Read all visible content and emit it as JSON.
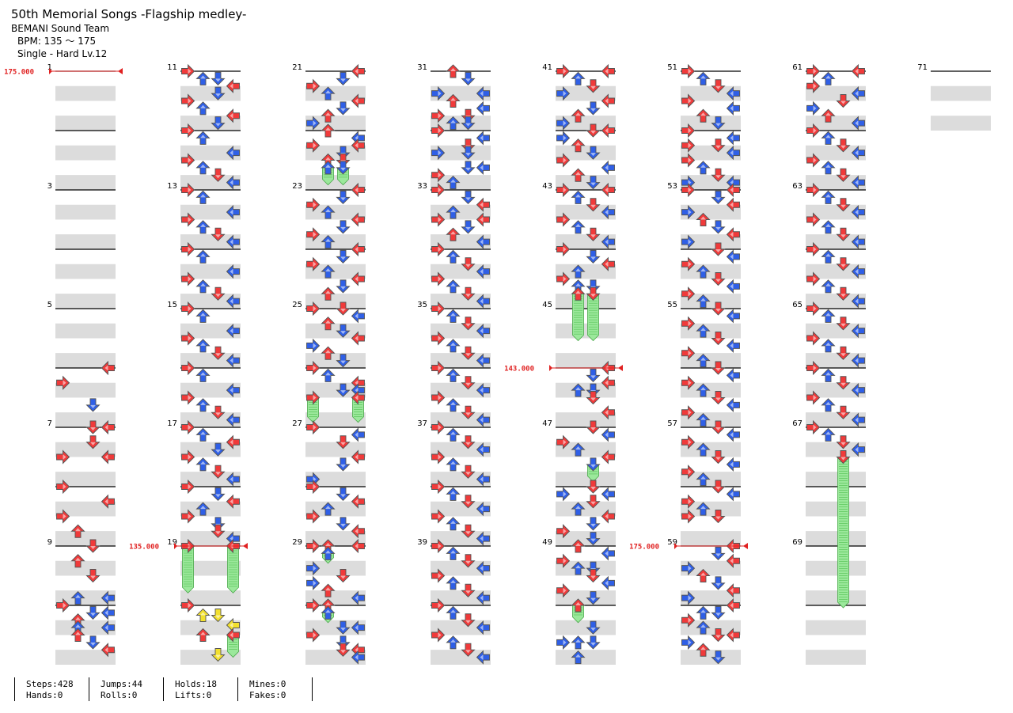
{
  "song": {
    "title": "50th Memorial Songs -Flagship medley-",
    "artist": "BEMANI Sound Team",
    "bpm": "BPM: 135 ～ 175",
    "chart": "Single - Hard  Lv.12"
  },
  "measures_total": 71,
  "bpm_changes": [
    {
      "measure": 1,
      "label": "175.000"
    },
    {
      "measure": 19,
      "label": "135.000"
    },
    {
      "measure": 46,
      "label": "143.000"
    },
    {
      "measure": 59,
      "label": "175.000"
    }
  ],
  "notes": {
    "6": "0001|0000|1000|0000|0000|0010|0000|0000",
    "7": "0011|0000|0010|0000|1001|0000|0000|0000",
    "8": "1000|0000|0001|0000|1000|0000|0100|0000",
    "9": "0010|0000|0100|0000|0020|0000|0003|0101",
    "10": "1000|0000|0011|0000|0100|0000|0101|0000|0100|0000|0010|0000|0001|0000|0000|0000",
    "11": "1000|0000|0110|0000|0001|0000|0010|0000|1000|0000|0100|0000|0001|0000|0010|0000",
    "12": "1000|0000|0100|0000|0000|0000|0001|0000|1000|0000|0100|0000|0010|0000|0001|0000",
    "13": "1000|0000|0100|0000|0000|0000|0001|0000|1000|0000|0100|0000|0010|0000|0001|0000",
    "14": "1000|0000|0100|0000|0000|0000|0001|0000|1000|0000|0100|0000|0010|0000|0001|0000",
    "15": "1000|0000|0100|0000|0000|0000|0001|0000|1000|0000|0100|0000|0010|0000|0001|0000",
    "16": "1000|0000|0100|0000|0000|0000|0001|0000|1000|0000|0100|0000|0010|0000|0001|0000",
    "17": "1000|0000|0100|0000|0001|0000|0010|0000|1000|0000|0100|0000|0010|0000|0001|0000",
    "18": "1000|0000|0010|0000|0001|0000|0100|0000|1000|0000|0010|0000|0010|0000|0001|0000",
    "19": "2002|0000|0000|0000|0000|0000|3003|0000",
    "20": "1000|0000|0110|0000|0001|0000|0102|0000|0000|0000|0013|0000",
    "21": "0001|0000|0010|0000|1000|0000|0100|0000|0001|0000|0010|0000|0100|0000|1000|0000",
    "22": "0100|0000|0001|0000|1001|0000|0010|0000|0110|0000|0220|0000|0000|0000|0330|0000",
    "23": "0001|0000|0010|0000|1000|0000|0100|0000|0001|0000|0010|0000|1000|0000|0100|0000",
    "24": "0001|0000|0010|0000|1000|0000|0100|0000|0001|0000|0010|0000|0100|0000|0000|0000",
    "25": "1010|0000|0001|0000|0100|0000|0010|0000|0001|0000|1000|0000|0100|0000|0010|0000",
    "26": "1000|0000|0100|0000|0001|0000|0011|0000|2002|0000|0000|0000|0000|0000|3003|0000",
    "27": "1000|0000|0001|0000|0010|0000|0000|0000|0001|0000|0010|0000|0000|0000|1000|0000",
    "28": "1000|0000|0010|0000|0001|0000|0100|0000|1000|0000|0010|0000|0001|0000|0000|0000",
    "29": "1101|0000|0200|0000|0300|0000|1000|0000|0010|0000|1000|0000|0100|0000|0001|0000",
    "30": "1100|0000|0200|0000|0300|0000|0011|0000|1000|0000|0010|0000|0011|0000|0001|0000",
    "31": "0100|0000|0010|0000|0000|0000|1001|0000|0100|0000|0001|0000|1010|0000|0110|0000",
    "32": "1000|0000|0001|0000|0010|0000|1020|0000|0300|0000|0011|0000|1000|0000|0100|0000",
    "33": "1000|0000|0010|0000|0001|0000|0100|0000|1001|0000|0010|0000|0100|0000|0001|0000",
    "34": "1000|0000|0100|0000|0010|0000|0001|0000|1000|0000|0100|0000|0010|0000|0001|0000",
    "35": "1000|0000|0100|0000|0010|0000|0001|0000|1000|0000|0100|0000|0010|0000|0001|0000",
    "36": "1000|0000|0100|0000|0010|0000|0001|0000|1000|0000|0100|0000|0010|0000|0001|0000",
    "37": "1000|0000|0100|0000|0010|0000|0001|0000|1000|0000|0100|0000|0010|0000|0001|0000",
    "38": "1000|0000|0100|0000|0010|0000|0001|0000|1000|0000|0100|0000|0010|0000|0001|0000",
    "39": "1000|0000|0100|0000|0010|0000|0001|0000|1000|0000|0100|0000|0010|0000|0001|0000",
    "40": "1000|0000|0100|0000|0010|0000|0001|0000|1000|0000|0100|0000|0010|0000|0001|0000",
    "41": "1001|0000|0100|0000|0010|0000|1000|0000|0001|0000|0010|0000|0100|0000|1000|0000",
    "42": "0011|0000|1000|0000|0100|0000|0010|0000|1000|0000|0001|0000|0100|0000|0010|0000",
    "43": "1001|0000|0100|0000|0010|0000|0001|0000|1000|0000|0100|0000|0010|0000|0001|0000",
    "44": "1000|0000|0010|0000|0001|0000|0100|0000|1000|0000|0110|0000|0220|0000|0000|0000",
    "45": "0000|0000|0000|0000|0330|0000|0000|0000",
    "46": "0001|0000|0010|0000|0001|0000|0110|0000|0010|0000|0000|0000|0001|0000|0000|0000",
    "47": "0010|0000|0001|0000|1000|0000|0100|0000|0001|0000|0020|0000|0000|0000|0030|0000",
    "48": "0010|0000|1001|0000|0010|0000|0100|0000|0001|0000|0010|0000|1000|0000|0010|0000",
    "49": "0100|0000|0001|0000|1000|0000|0110|0000|0010|0000|0001|0000|1000|0000|0010|0000",
    "50": "0200|0000|0000|0000|0300|0000|0010|0000|0000|0000|1110|0000|0000|0000|0100|0000",
    "51": "1000|0000|0100|0000|0010|0000|0001|0000|1000|0000|0001|0000|0100|0000|0010|0000",
    "52": "1000|0000|0001|0000|1010|0000|0001|0000|1000|0000|0100|0000|0010|0000|1001|0000",
    "53": "1001|0000|0010|0000|0001|0000|1000|0000|0100|0000|0010|0000|0001|0000|1000|0000",
    "54": "0010|0000|0001|0000|1000|0000|0100|0000|0010|0000|0001|0000|1000|0000|0100|0000",
    "55": "0010|0000|0001|0000|1000|0000|0100|0000|0010|0000|0001|0000|1000|0000|0100|0000",
    "56": "0010|0000|0001|0000|1000|0000|0100|0000|0010|0000|0001|0000|1000|0000|0100|0000",
    "57": "0010|0000|0001|0000|1000|0000|0100|0000|0010|0000|0001|0000|1000|0000|0100|0000",
    "58": "0010|0000|0001|0000|1000|0000|0100|0000|1020|0000|0000|0000|0000|0000|3003|0000",
    "59": "0001|0000|0010|0000|0001|0000|1000|0000|0100|0000|0010|0000|0001|0000|1000|0000",
    "60": "0001|0000|0110|0000|1000|0000|0100|0000|0011|0000|1000|0000|0100|0000|0010|0000",
    "61": "1001|0000|0100|0000|1000|0000|0001|0000|0010|0000|1000|0000|0100|0000|0001|0000",
    "62": "1000|0000|0100|0000|0010|0000|0001|0000|1000|0000|0100|0000|0010|0000|0001|0000",
    "63": "1000|0000|0100|0000|0010|0000|0001|0000|1000|0000|0100|0000|0010|0000|0001|0000",
    "64": "1000|0000|0100|0000|0010|0000|0001|0000|1000|0000|0100|0000|0010|0000|0001|0000",
    "65": "1000|0000|0100|0000|0010|0000|0001|0000|1000|0000|0100|0000|0010|0000|0001|0000",
    "66": "1000|0000|0100|0000|0010|0000|0001|0000|1000|0000|0100|0000|0010|0000|0001|0000",
    "67": "1000|0000|0100|0000|0010|0000|0001|0000|0020|0000|0000|0000|0000|0000|0000|0000",
    "68": "0000|0000|0000|0000|0000|0000|0000|0000",
    "69": "0000|0000|0000|0000|0000|0000|0000|0000",
    "70": "0030|0000|0000|0000|0000|0000|0000|0000"
  },
  "stats": {
    "steps": "Steps:428",
    "hands": "Hands:0",
    "jumps": "Jumps:44",
    "rolls": "Rolls:0",
    "holds": "Holds:18",
    "lifts": "Lifts:0",
    "mines": "Mines:0",
    "fakes": "Fakes:0"
  },
  "colors": {
    "quarter": "#f03a3a",
    "eighth": "#2f5fe6",
    "sixteenth": "#f2e02e",
    "hold_fill": "#9be89b",
    "hold_stripe": "#6ccf6c",
    "row_stripe": "#dcdcdc",
    "bpm_marker": "#e02020"
  }
}
